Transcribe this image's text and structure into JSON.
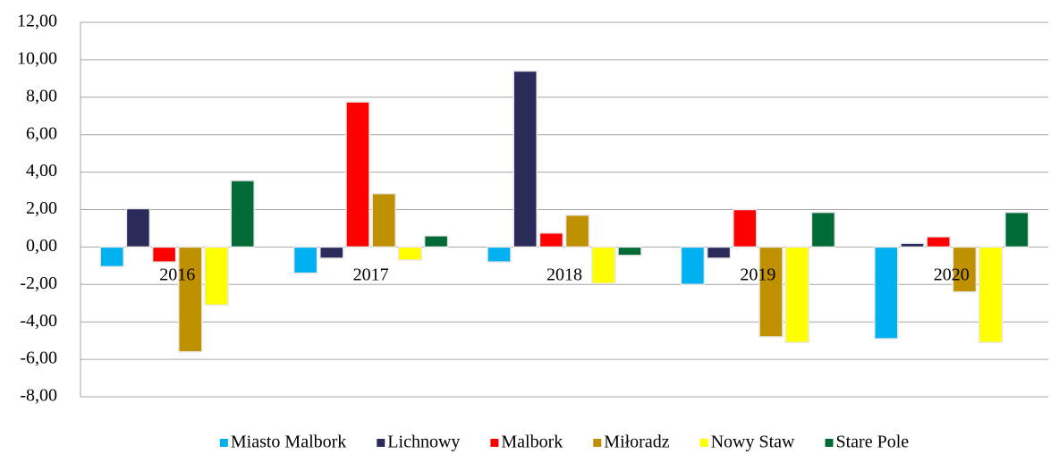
{
  "chart_data": {
    "type": "bar",
    "categories": [
      "2016",
      "2017",
      "2018",
      "2019",
      "2020"
    ],
    "series": [
      {
        "name": "Miasto Malbork",
        "color": "#00b0f0",
        "values": [
          -1.05,
          -1.4,
          -0.8,
          -2.0,
          -4.9
        ]
      },
      {
        "name": "Lichnowy",
        "color": "#2b2b5b",
        "values": [
          2.05,
          -0.6,
          9.4,
          -0.6,
          0.2
        ]
      },
      {
        "name": "Malbork",
        "color": "#ff0000",
        "values": [
          -0.8,
          7.75,
          0.75,
          2.0,
          0.55
        ]
      },
      {
        "name": "Miłoradz",
        "color": "#bf9000",
        "values": [
          -5.6,
          2.85,
          1.7,
          -4.8,
          -2.4
        ]
      },
      {
        "name": "Nowy Staw",
        "color": "#ffff00",
        "values": [
          -3.1,
          -0.7,
          -1.95,
          -5.1,
          -5.1
        ]
      },
      {
        "name": "Stare Pole",
        "color": "#006b36",
        "values": [
          3.55,
          0.6,
          -0.45,
          1.85,
          1.85
        ]
      }
    ],
    "ylim": [
      -8,
      12
    ],
    "yticks": [
      {
        "value": -8,
        "label": "-8,00"
      },
      {
        "value": -6,
        "label": "-6,00"
      },
      {
        "value": -4,
        "label": "-4,00"
      },
      {
        "value": -2,
        "label": "-2,00"
      },
      {
        "value": 0,
        "label": "0,00"
      },
      {
        "value": 2,
        "label": "2,00"
      },
      {
        "value": 4,
        "label": "4,00"
      },
      {
        "value": 6,
        "label": "6,00"
      },
      {
        "value": 8,
        "label": "8,00"
      },
      {
        "value": 10,
        "label": "10,00"
      },
      {
        "value": 12,
        "label": "12,00"
      }
    ],
    "grid": true,
    "legend": "bottom"
  }
}
